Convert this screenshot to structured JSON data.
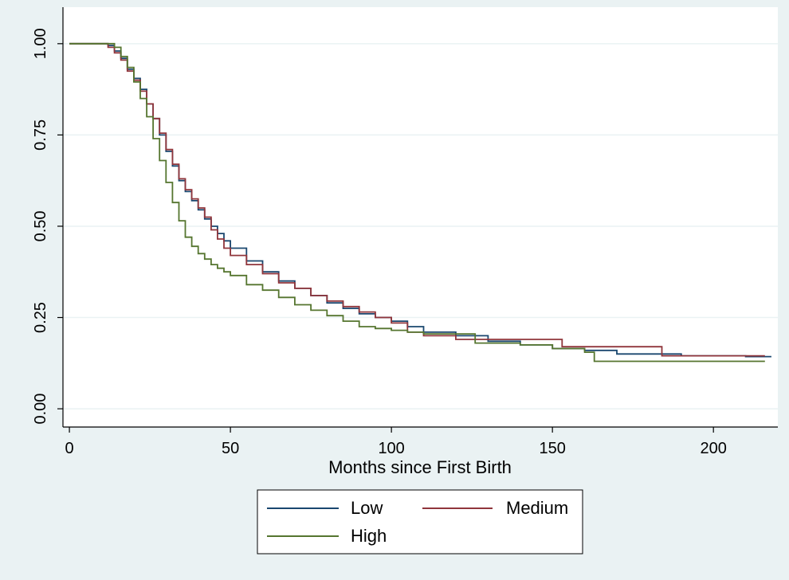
{
  "chart_data": {
    "type": "line",
    "title": "",
    "xlabel": "Months since First Birth",
    "ylabel": "",
    "xlim": [
      -2,
      220
    ],
    "ylim": [
      0,
      1.0
    ],
    "x_ticks": [
      0,
      50,
      100,
      150,
      200
    ],
    "x_tick_labels": [
      "0",
      "50",
      "100",
      "150",
      "200"
    ],
    "y_ticks": [
      0.0,
      0.25,
      0.5,
      0.75,
      1.0
    ],
    "y_tick_labels": [
      "0.00",
      "0.25",
      "0.50",
      "0.75",
      "1.00"
    ],
    "grid": "horizontal",
    "legend_position": "bottom",
    "series": [
      {
        "name": "Low",
        "color": "#1a476f",
        "points": [
          [
            0,
            1.0
          ],
          [
            10,
            1.0
          ],
          [
            12,
            0.995
          ],
          [
            14,
            0.98
          ],
          [
            16,
            0.96
          ],
          [
            18,
            0.93
          ],
          [
            20,
            0.905
          ],
          [
            22,
            0.875
          ],
          [
            24,
            0.835
          ],
          [
            26,
            0.795
          ],
          [
            28,
            0.75
          ],
          [
            30,
            0.705
          ],
          [
            32,
            0.665
          ],
          [
            34,
            0.625
          ],
          [
            36,
            0.595
          ],
          [
            38,
            0.57
          ],
          [
            40,
            0.545
          ],
          [
            42,
            0.52
          ],
          [
            44,
            0.5
          ],
          [
            46,
            0.48
          ],
          [
            48,
            0.46
          ],
          [
            50,
            0.44
          ],
          [
            55,
            0.405
          ],
          [
            60,
            0.375
          ],
          [
            65,
            0.35
          ],
          [
            70,
            0.33
          ],
          [
            75,
            0.31
          ],
          [
            80,
            0.29
          ],
          [
            85,
            0.275
          ],
          [
            90,
            0.26
          ],
          [
            95,
            0.25
          ],
          [
            100,
            0.24
          ],
          [
            105,
            0.225
          ],
          [
            110,
            0.21
          ],
          [
            120,
            0.2
          ],
          [
            130,
            0.185
          ],
          [
            140,
            0.175
          ],
          [
            150,
            0.165
          ],
          [
            160,
            0.16
          ],
          [
            170,
            0.15
          ],
          [
            180,
            0.15
          ],
          [
            190,
            0.145
          ],
          [
            200,
            0.145
          ],
          [
            210,
            0.143
          ],
          [
            218,
            0.143
          ]
        ]
      },
      {
        "name": "Medium",
        "color": "#90353b",
        "points": [
          [
            0,
            1.0
          ],
          [
            10,
            1.0
          ],
          [
            12,
            0.99
          ],
          [
            14,
            0.975
          ],
          [
            16,
            0.955
          ],
          [
            18,
            0.925
          ],
          [
            20,
            0.9
          ],
          [
            22,
            0.87
          ],
          [
            24,
            0.835
          ],
          [
            26,
            0.795
          ],
          [
            28,
            0.755
          ],
          [
            30,
            0.71
          ],
          [
            32,
            0.67
          ],
          [
            34,
            0.63
          ],
          [
            36,
            0.6
          ],
          [
            38,
            0.575
          ],
          [
            40,
            0.55
          ],
          [
            42,
            0.525
          ],
          [
            44,
            0.49
          ],
          [
            46,
            0.465
          ],
          [
            48,
            0.44
          ],
          [
            50,
            0.42
          ],
          [
            55,
            0.395
          ],
          [
            60,
            0.37
          ],
          [
            65,
            0.345
          ],
          [
            70,
            0.33
          ],
          [
            75,
            0.31
          ],
          [
            80,
            0.295
          ],
          [
            85,
            0.28
          ],
          [
            90,
            0.265
          ],
          [
            95,
            0.25
          ],
          [
            100,
            0.235
          ],
          [
            105,
            0.21
          ],
          [
            110,
            0.2
          ],
          [
            120,
            0.19
          ],
          [
            130,
            0.19
          ],
          [
            140,
            0.19
          ],
          [
            153,
            0.19
          ],
          [
            153,
            0.17
          ],
          [
            164,
            0.17
          ],
          [
            164,
            0.17
          ],
          [
            184,
            0.17
          ],
          [
            184,
            0.145
          ],
          [
            200,
            0.145
          ],
          [
            210,
            0.145
          ],
          [
            216,
            0.145
          ]
        ]
      },
      {
        "name": "High",
        "color": "#55752f",
        "points": [
          [
            0,
            1.0
          ],
          [
            12,
            1.0
          ],
          [
            14,
            0.99
          ],
          [
            16,
            0.965
          ],
          [
            18,
            0.935
          ],
          [
            20,
            0.895
          ],
          [
            22,
            0.85
          ],
          [
            24,
            0.8
          ],
          [
            26,
            0.74
          ],
          [
            28,
            0.68
          ],
          [
            30,
            0.62
          ],
          [
            32,
            0.565
          ],
          [
            34,
            0.515
          ],
          [
            36,
            0.47
          ],
          [
            38,
            0.445
          ],
          [
            40,
            0.425
          ],
          [
            42,
            0.41
          ],
          [
            44,
            0.395
          ],
          [
            46,
            0.385
          ],
          [
            48,
            0.375
          ],
          [
            50,
            0.365
          ],
          [
            55,
            0.34
          ],
          [
            60,
            0.325
          ],
          [
            65,
            0.305
          ],
          [
            70,
            0.285
          ],
          [
            75,
            0.27
          ],
          [
            80,
            0.255
          ],
          [
            85,
            0.24
          ],
          [
            90,
            0.225
          ],
          [
            95,
            0.22
          ],
          [
            100,
            0.215
          ],
          [
            105,
            0.21
          ],
          [
            110,
            0.205
          ],
          [
            120,
            0.205
          ],
          [
            126,
            0.205
          ],
          [
            126,
            0.18
          ],
          [
            140,
            0.175
          ],
          [
            150,
            0.165
          ],
          [
            155,
            0.165
          ],
          [
            160,
            0.155
          ],
          [
            163,
            0.155
          ],
          [
            163,
            0.13
          ],
          [
            180,
            0.13
          ],
          [
            200,
            0.13
          ],
          [
            216,
            0.13
          ]
        ]
      }
    ]
  }
}
